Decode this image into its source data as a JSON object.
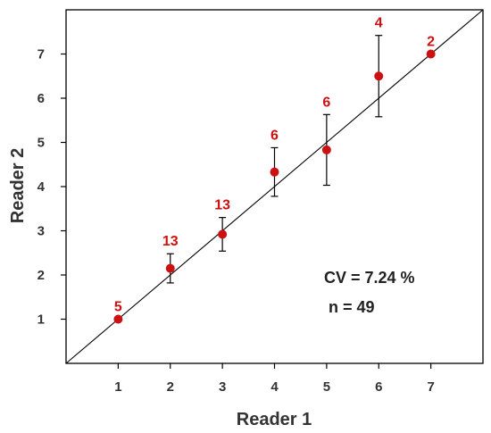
{
  "chart_data": {
    "type": "scatter",
    "xlabel": "Reader 1",
    "ylabel": "Reader 2",
    "xlim": [
      0,
      8
    ],
    "ylim": [
      0,
      8
    ],
    "xticks": [
      1,
      2,
      3,
      4,
      5,
      6,
      7
    ],
    "yticks": [
      1,
      2,
      3,
      4,
      5,
      6,
      7
    ],
    "grid": false,
    "identity_line": true,
    "point_color": "#cc1111",
    "line_color": "#000000",
    "points": [
      {
        "x": 1,
        "y": 1.0,
        "err_low": 1.0,
        "err_high": 1.0,
        "n": "5"
      },
      {
        "x": 2,
        "y": 2.15,
        "err_low": 1.82,
        "err_high": 2.48,
        "n": "13"
      },
      {
        "x": 3,
        "y": 2.92,
        "err_low": 2.54,
        "err_high": 3.3,
        "n": "13"
      },
      {
        "x": 4,
        "y": 4.33,
        "err_low": 3.78,
        "err_high": 4.88,
        "n": "6"
      },
      {
        "x": 5,
        "y": 4.83,
        "err_low": 4.03,
        "err_high": 5.63,
        "n": "6"
      },
      {
        "x": 6,
        "y": 6.5,
        "err_low": 5.58,
        "err_high": 7.42,
        "n": "4"
      },
      {
        "x": 7,
        "y": 7.0,
        "err_low": 7.0,
        "err_high": 7.0,
        "n": "2"
      }
    ],
    "annotations": {
      "cv": "CV = 7.24 %",
      "n": "n = 49"
    }
  }
}
